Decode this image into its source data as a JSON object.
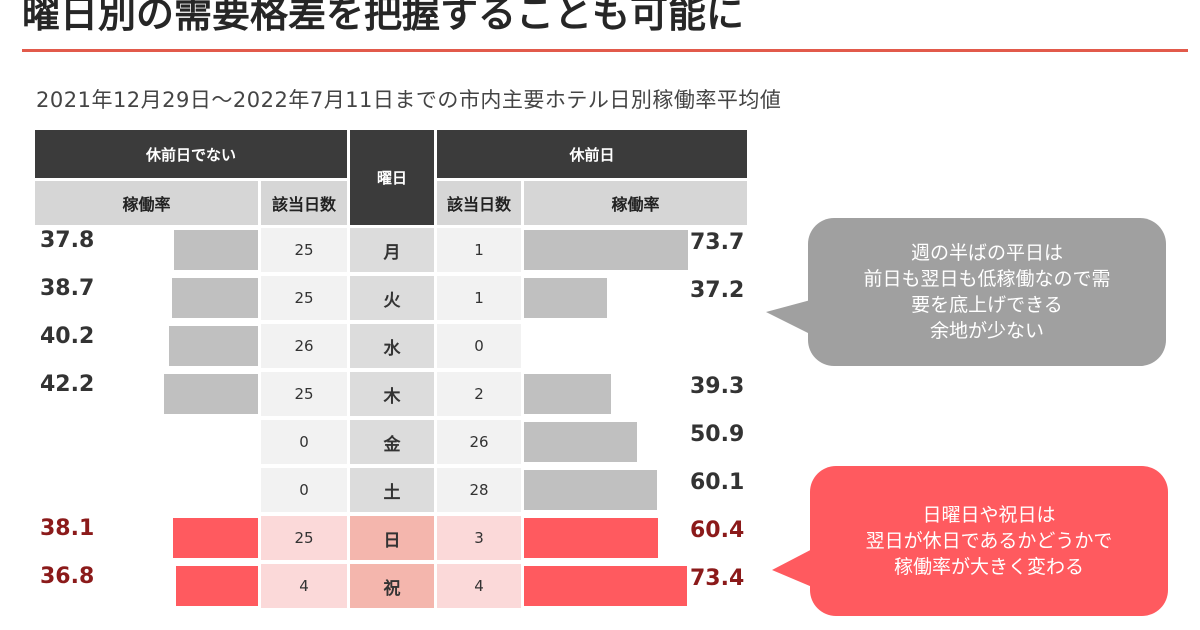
{
  "title": "曜日別の需要格差を把握することも可能に",
  "subtitle": "2021年12月29日〜2022年7月11日までの市内主要ホテル日別稼働率平均値",
  "headers": {
    "not_holiday_eve": "休前日でない",
    "day": "曜日",
    "holiday_eve": "休前日",
    "rate": "稼働率",
    "days_count": "該当日数"
  },
  "colors": {
    "bar_gray": "#c0c0c0",
    "bar_red": "#ff5a5f",
    "header_dark": "#3b3b3b",
    "accent_rule": "#e25a4b",
    "callout_gray": "#a0a0a0",
    "callout_red": "#ff5a5f"
  },
  "chart_data": {
    "type": "bar",
    "categories": [
      "月",
      "火",
      "水",
      "木",
      "金",
      "土",
      "日",
      "祝"
    ],
    "series": [
      {
        "name": "休前日でない",
        "rate": [
          37.8,
          38.7,
          40.2,
          42.2,
          null,
          null,
          38.1,
          36.8
        ],
        "days": [
          25,
          25,
          26,
          25,
          0,
          0,
          25,
          4
        ]
      },
      {
        "name": "休前日",
        "rate": [
          73.7,
          37.2,
          null,
          39.3,
          50.9,
          60.1,
          60.4,
          73.4
        ],
        "days": [
          1,
          1,
          0,
          2,
          26,
          28,
          3,
          4
        ]
      }
    ],
    "highlighted_categories": [
      "日",
      "祝"
    ]
  },
  "callouts": {
    "weekday": [
      "週の半ばの平日は",
      "前日も翌日も低稼働なので需",
      "要を底上げできる",
      "余地が少ない"
    ],
    "holiday": [
      "日曜日や祝日は",
      "翌日が休日であるかどうかで",
      "稼働率が大きく変わる"
    ]
  }
}
